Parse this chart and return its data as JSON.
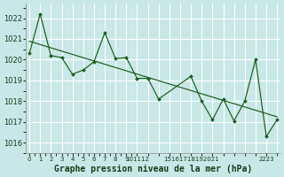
{
  "title": "Graphe pression niveau de la mer (hPa)",
  "bg_color": "#c8e8e8",
  "grid_color": "#aacccc",
  "line_color": "#1a5c1a",
  "ylim": [
    1015.5,
    1022.7
  ],
  "yticks": [
    1016,
    1017,
    1018,
    1019,
    1020,
    1021,
    1022
  ],
  "xlim": [
    -0.3,
    23.3
  ],
  "series": [
    [
      0,
      1020.3
    ],
    [
      1,
      1022.2
    ],
    [
      2,
      1020.2
    ],
    [
      3,
      1020.1
    ],
    [
      4,
      1019.3
    ],
    [
      5,
      1019.5
    ],
    [
      6,
      1019.9
    ],
    [
      7,
      1021.3
    ],
    [
      8,
      1020.05
    ],
    [
      9,
      1020.1
    ],
    [
      10,
      1019.1
    ],
    [
      11,
      1019.1
    ],
    [
      12,
      1018.1
    ],
    [
      15,
      1019.2
    ],
    [
      16,
      1018.0
    ],
    [
      17,
      1017.1
    ],
    [
      18,
      1018.1
    ],
    [
      19,
      1017.05
    ],
    [
      20,
      1018.0
    ],
    [
      21,
      1020.0
    ],
    [
      22,
      1016.3
    ],
    [
      23,
      1017.1
    ]
  ],
  "xtick_labels": [
    "0",
    "1",
    "2",
    "3",
    "4",
    "5",
    "6",
    "7",
    "8",
    "9",
    "101112",
    "15161718192021",
    "2223",
    ""
  ],
  "xlabel_fontsize": 7,
  "ytick_fontsize": 6,
  "xtick_fontsize": 5
}
